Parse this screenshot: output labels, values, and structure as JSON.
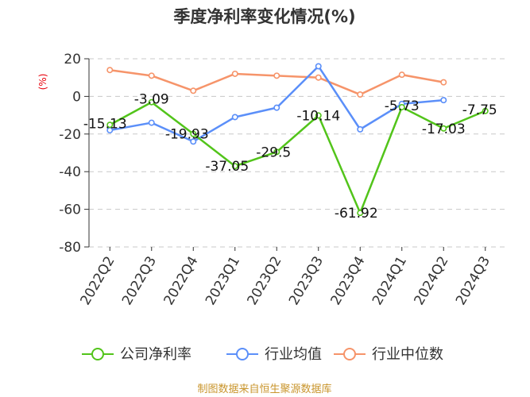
{
  "chart_data": {
    "type": "line",
    "title": "季度净利率变化情况(%)",
    "ylabel": "(%)",
    "categories": [
      "2022Q2",
      "2022Q3",
      "2022Q4",
      "2023Q1",
      "2023Q2",
      "2023Q3",
      "2023Q4",
      "2024Q1",
      "2024Q2",
      "2024Q3"
    ],
    "ylim": [
      -80,
      20
    ],
    "yticks": [
      20,
      0,
      -20,
      -40,
      -60,
      -80
    ],
    "grid": true,
    "legend_position": "bottom",
    "series": [
      {
        "name": "公司净利率",
        "color": "#52c41a",
        "values": [
          -15.13,
          -3.09,
          -19.93,
          -37.05,
          -29.5,
          -10.14,
          -61.92,
          -5.73,
          -17.03,
          -7.75
        ],
        "labels": [
          "-15.13",
          "-3.09",
          "-19.93",
          "-37.05",
          "-29.5",
          "-10.14",
          "-61.92",
          "-5.73",
          "-17.03",
          "-7.75"
        ]
      },
      {
        "name": "行业均值",
        "color": "#5b8ff9",
        "values": [
          -18,
          -14,
          -24,
          -11,
          -6,
          16,
          -17.5,
          -4,
          -2,
          null
        ]
      },
      {
        "name": "行业中位数",
        "color": "#f6946a",
        "values": [
          14,
          11,
          3,
          12,
          11,
          10,
          1,
          11.5,
          7.5,
          null
        ]
      }
    ]
  },
  "source_text": "制图数据来自恒生聚源数据库"
}
